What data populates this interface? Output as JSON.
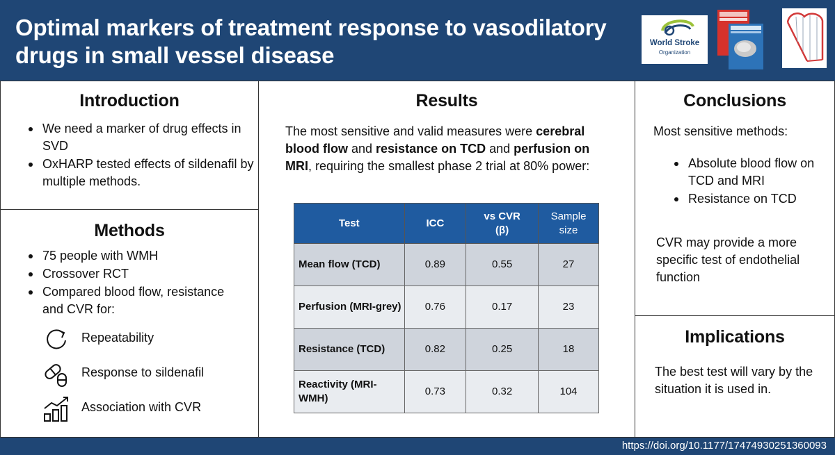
{
  "header": {
    "title_line1": "Optimal markers of treatment response to vasodilatory",
    "title_line2": "drugs in small vessel disease",
    "wso_name": "World Stroke",
    "wso_sub": "Organization"
  },
  "introduction": {
    "heading": "Introduction",
    "bullets": [
      "We need a marker of drug effects in SVD",
      "OxHARP tested effects of sildenafil by multiple methods."
    ]
  },
  "methods": {
    "heading": "Methods",
    "bullets": [
      "75 people with WMH",
      "Crossover RCT",
      "Compared blood flow, resistance and CVR for:"
    ],
    "items": [
      {
        "icon": "refresh-icon",
        "label": "Repeatability"
      },
      {
        "icon": "pill-icon",
        "label": "Response to sildenafil"
      },
      {
        "icon": "bar-chart-icon",
        "label": "Association with CVR"
      }
    ]
  },
  "results": {
    "heading": "Results",
    "text_a": "The most sensitive and valid measures were ",
    "text_b": "cerebral blood flow",
    "text_c": " and ",
    "text_d": "resistance on TCD",
    "text_e": " and ",
    "text_f": "perfusion on MRI",
    "text_g": ", requiring the smallest phase 2 trial at 80% power:",
    "table": {
      "headers": [
        "Test",
        "ICC",
        "vs CVR (β)",
        "Sample size"
      ],
      "rows": [
        [
          "Mean flow (TCD)",
          "0.89",
          "0.55",
          "27"
        ],
        [
          "Perfusion (MRI-grey)",
          "0.76",
          "0.17",
          "23"
        ],
        [
          "Resistance (TCD)",
          "0.82",
          "0.25",
          "18"
        ],
        [
          "Reactivity (MRI-WMH)",
          "0.73",
          "0.32",
          "104"
        ]
      ]
    }
  },
  "conclusions": {
    "heading": "Conclusions",
    "intro": "Most sensitive methods:",
    "bullets": [
      "Absolute blood flow on TCD and MRI",
      "Resistance on TCD"
    ],
    "note": "CVR may provide a more specific test of endothelial function"
  },
  "implications": {
    "heading": "Implications",
    "text": "The best test will vary by the situation it is used in."
  },
  "footer": {
    "doi": "https://doi.org/10.1177/17474930251360093"
  },
  "colors": {
    "navy": "#1f4675",
    "table_header": "#1f5ba0",
    "row_shade": "#cfd4dc",
    "row_light": "#e9ecf0"
  }
}
